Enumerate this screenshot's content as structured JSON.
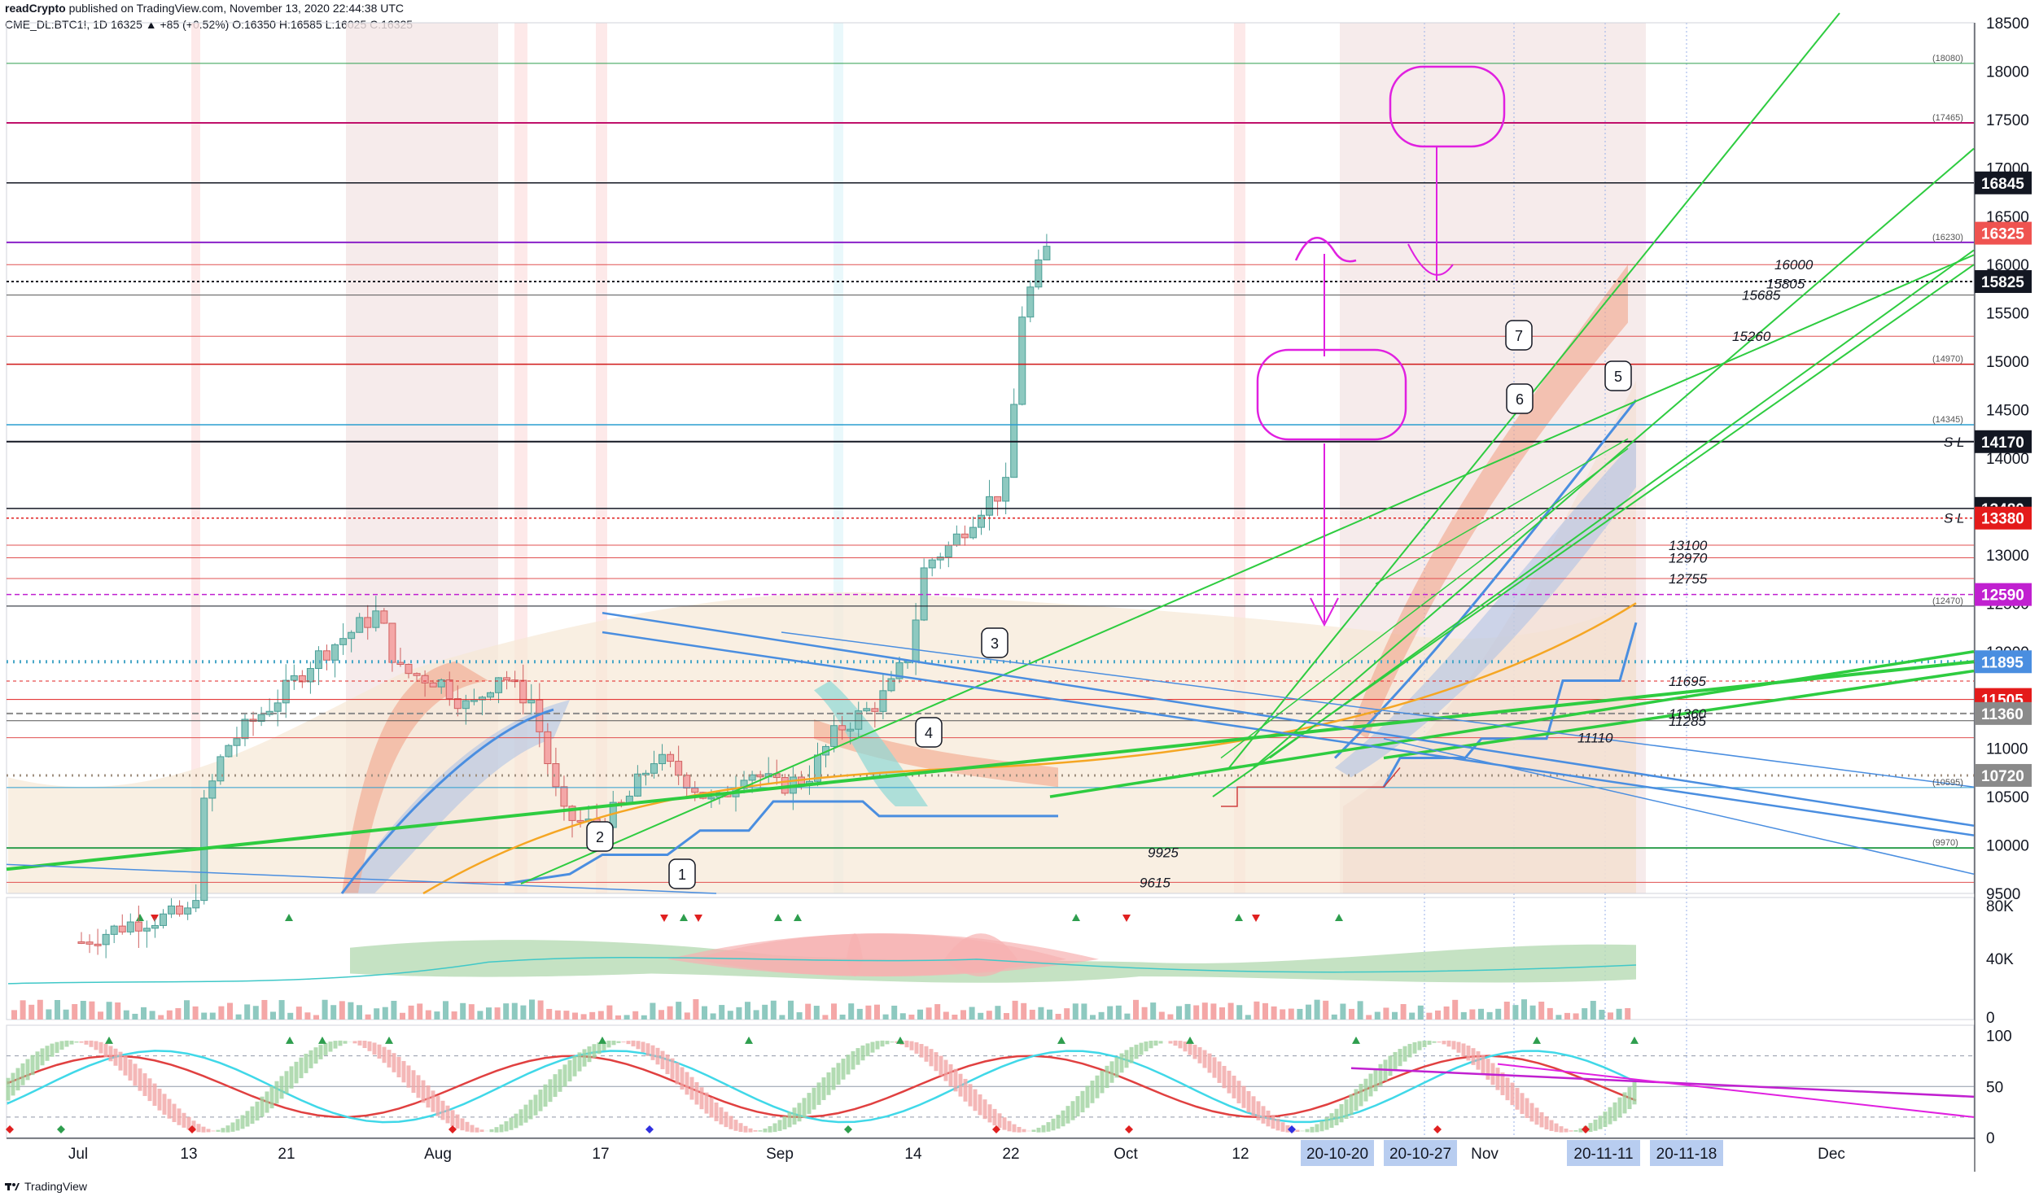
{
  "header": {
    "author": "readCrypto",
    "published": "published on TradingView.com, November 13, 2020 22:44:38 UTC",
    "symbol": "CME_DL:BTC1!, 1D",
    "ohlc": "16325 ▲ +85 (+0.52%) O:16350 H:16585 L:16025 C:16325"
  },
  "footer": {
    "brand": "TradingView"
  },
  "colors": {
    "up": "#8ec9c0",
    "down": "#f4a7a7",
    "green_line": "#2ecc40",
    "blue_line": "#4a8ee0",
    "orange": "#f5a623",
    "magenta": "#e020e0"
  },
  "chart_data": [
    {
      "type": "line",
      "panel": "price",
      "ylim": [
        9500,
        18500
      ],
      "y_ticks": [
        9500,
        10000,
        10500,
        11000,
        11500,
        12000,
        12500,
        13000,
        13500,
        14000,
        14500,
        15000,
        15500,
        16000,
        16500,
        17000,
        17500,
        18000,
        18500
      ],
      "x_dates": [
        "Jul",
        "13",
        "21",
        "Aug",
        "17",
        "Sep",
        "14",
        "22",
        "Oct",
        "12",
        "20-10-20",
        "20-10-27",
        "Nov",
        "20-11-11",
        "20-11-18",
        "Dec"
      ],
      "price_tags": [
        {
          "value": 16845,
          "label": "16845",
          "color": "#131722"
        },
        {
          "value": 16325,
          "label": "16325",
          "color": "#ef5350"
        },
        {
          "value": 15825,
          "label": "15825",
          "color": "#131722"
        },
        {
          "value": 14170,
          "label": "14170",
          "color": "#131722"
        },
        {
          "value": 13480,
          "label": "13480",
          "color": "#131722"
        },
        {
          "value": 13380,
          "label": "13380",
          "color": "#e41b1b"
        },
        {
          "value": 12590,
          "label": "12590",
          "color": "#c020d0"
        },
        {
          "value": 11895,
          "label": "11895",
          "color": "#4a8ee0"
        },
        {
          "value": 11505,
          "label": "11505",
          "color": "#e41b1b"
        },
        {
          "value": 11360,
          "label": "11360",
          "color": "#8a8a8a"
        },
        {
          "value": 10720,
          "label": "10720",
          "color": "#8a8a8a"
        }
      ],
      "level_labels": [
        {
          "value": 16000,
          "label": "16000"
        },
        {
          "value": 15805,
          "label": "15805"
        },
        {
          "value": 15685,
          "label": "15685"
        },
        {
          "value": 15260,
          "label": "15260"
        },
        {
          "value": 13100,
          "label": "13100"
        },
        {
          "value": 12970,
          "label": "12970"
        },
        {
          "value": 12755,
          "label": "12755"
        },
        {
          "value": 11695,
          "label": "11695"
        },
        {
          "value": 11360,
          "label": "11360"
        },
        {
          "value": 11285,
          "label": "11285"
        },
        {
          "value": 11110,
          "label": "11110"
        },
        {
          "value": 9925,
          "label": "9925"
        },
        {
          "value": 9615,
          "label": "9615"
        }
      ],
      "small_labels": [
        {
          "value": 18080,
          "label": "(18080)"
        },
        {
          "value": 17465,
          "label": "(17465)"
        },
        {
          "value": 16230,
          "label": "(16230)"
        },
        {
          "value": 14970,
          "label": "(14970)"
        },
        {
          "value": 14345,
          "label": "(14345)"
        },
        {
          "value": 12470,
          "label": "(12470)"
        },
        {
          "value": 10595,
          "label": "(10595)"
        },
        {
          "value": 9970,
          "label": "(9970)"
        }
      ],
      "sl_labels": [
        {
          "value": 14170,
          "label": "S L"
        },
        {
          "value": 13380,
          "label": "S L"
        }
      ],
      "callouts": [
        "1",
        "2",
        "3",
        "4",
        "5",
        "6",
        "7"
      ]
    },
    {
      "type": "area",
      "panel": "volume",
      "y_ticks": [
        "80K",
        "40K",
        "0"
      ]
    },
    {
      "type": "line",
      "panel": "oscillator",
      "y_ticks": [
        "100",
        "50",
        "0"
      ]
    }
  ]
}
